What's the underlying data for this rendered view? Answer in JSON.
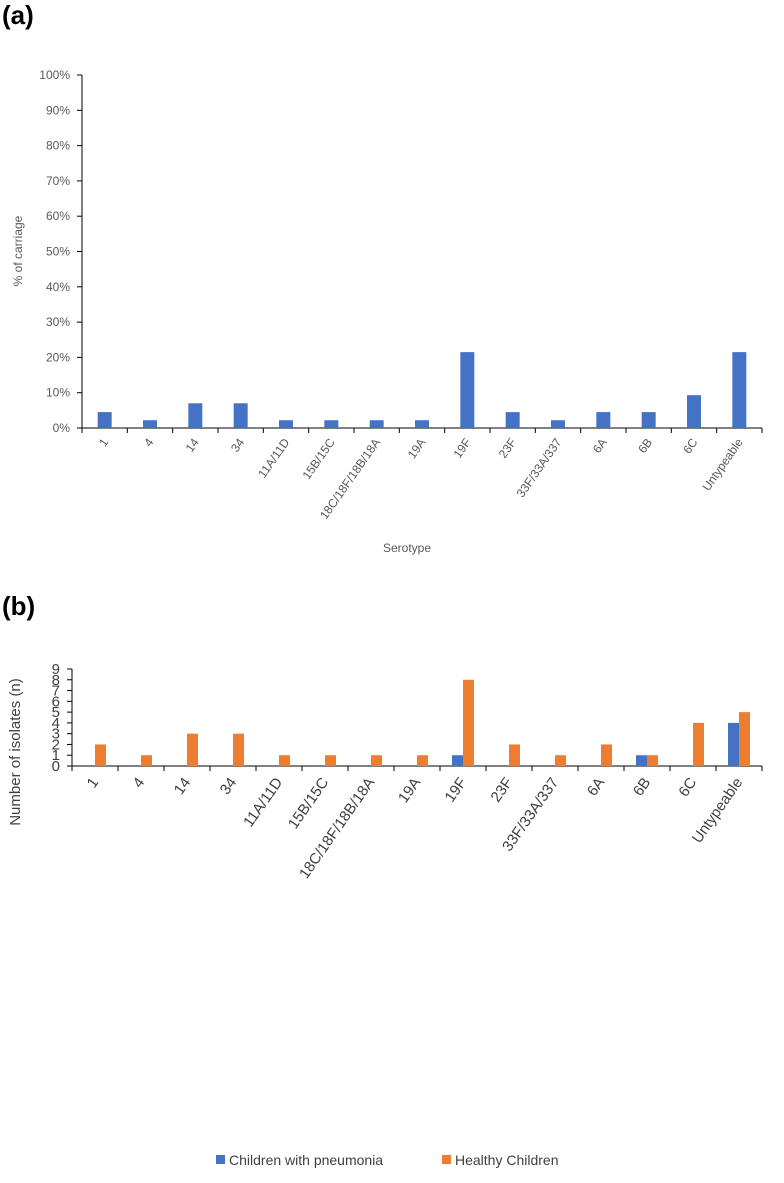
{
  "chart_data": [
    {
      "type": "bar",
      "panel_label": "(a)",
      "categories": [
        "1",
        "4",
        "14",
        "34",
        "11A/11D",
        "15B/15C",
        "18C/18F/18B/18A",
        "19A",
        "19F",
        "23F",
        "33F/33A/337",
        "6A",
        "6B",
        "6C",
        "Untypeable"
      ],
      "series": [
        {
          "name": "",
          "color": "#4472C4",
          "values": [
            4.5,
            2.2,
            7.0,
            7.0,
            2.2,
            2.2,
            2.2,
            2.2,
            21.5,
            4.5,
            2.2,
            4.5,
            4.5,
            9.3,
            21.5
          ]
        }
      ],
      "xlabel": "Serotype",
      "ylabel": "% of carriage",
      "ylim": [
        0,
        100
      ],
      "yticks": [
        "0%",
        "10%",
        "20%",
        "30%",
        "40%",
        "50%",
        "60%",
        "70%",
        "80%",
        "90%",
        "100%"
      ],
      "grid": false,
      "legend": "none"
    },
    {
      "type": "bar",
      "panel_label": "(b)",
      "categories": [
        "1",
        "4",
        "14",
        "34",
        "11A/11D",
        "15B/15C",
        "18C/18F/18B/18A",
        "19A",
        "19F",
        "23F",
        "33F/33A/337",
        "6A",
        "6B",
        "6C",
        "Untypeable"
      ],
      "series": [
        {
          "name": "Children with pneumonia",
          "color": "#4472C4",
          "values": [
            0,
            0,
            0,
            0,
            0,
            0,
            0,
            0,
            1,
            0,
            0,
            0,
            1,
            0,
            4
          ]
        },
        {
          "name": "Healthy Children",
          "color": "#ED7D31",
          "values": [
            2,
            1,
            3,
            3,
            1,
            1,
            1,
            1,
            8,
            2,
            1,
            2,
            1,
            4,
            5
          ]
        }
      ],
      "xlabel": "",
      "ylabel": "Number of isolates (n)",
      "ylim": [
        0,
        9
      ],
      "yticks": [
        "0",
        "1",
        "2",
        "3",
        "4",
        "5",
        "6",
        "7",
        "8",
        "9"
      ],
      "grid": false,
      "legend": "bottom"
    }
  ]
}
